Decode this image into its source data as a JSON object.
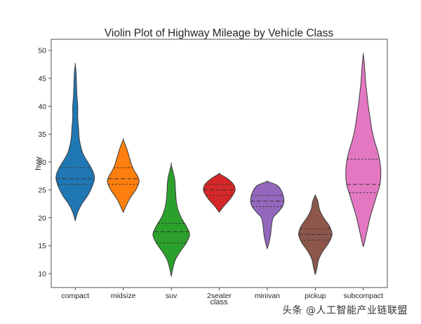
{
  "chart_data": {
    "type": "violin",
    "title": "Violin Plot of Highway Mileage by Vehicle Class",
    "xlabel": "class",
    "ylabel": "hwy",
    "ylim": [
      7.5,
      52
    ],
    "yticks": [
      10,
      15,
      20,
      25,
      30,
      35,
      40,
      45,
      50
    ],
    "grid": false,
    "categories": [
      "compact",
      "midsize",
      "suv",
      "2seater",
      "minivan",
      "pickup",
      "subcompact"
    ],
    "colors": [
      "#1f77b4",
      "#ff7f0e",
      "#2ca02c",
      "#d62728",
      "#9467bd",
      "#8c564b",
      "#e377c2"
    ],
    "violins": [
      {
        "class": "compact",
        "q1": 26,
        "median": 27,
        "q3": 29,
        "profile": [
          [
            19.5,
            0
          ],
          [
            21,
            3
          ],
          [
            22.5,
            8
          ],
          [
            24,
            15
          ],
          [
            25.5,
            20
          ],
          [
            27,
            23
          ],
          [
            28,
            22
          ],
          [
            29,
            19
          ],
          [
            30,
            15
          ],
          [
            31,
            11
          ],
          [
            32,
            8
          ],
          [
            34,
            5
          ],
          [
            36,
            4
          ],
          [
            38,
            3
          ],
          [
            40,
            3
          ],
          [
            42,
            2
          ],
          [
            44,
            1.5
          ],
          [
            46,
            1
          ],
          [
            47.5,
            0
          ]
        ]
      },
      {
        "class": "midsize",
        "q1": 26,
        "median": 27,
        "q3": 29,
        "profile": [
          [
            21,
            0
          ],
          [
            22,
            3
          ],
          [
            23.5,
            8
          ],
          [
            25,
            15
          ],
          [
            26.5,
            19
          ],
          [
            27.5,
            17
          ],
          [
            28.5,
            13
          ],
          [
            29.5,
            10
          ],
          [
            30.5,
            8
          ],
          [
            31.5,
            6
          ],
          [
            32.5,
            4
          ],
          [
            34,
            0
          ]
        ]
      },
      {
        "class": "suv",
        "q1": 15.5,
        "median": 17.5,
        "q3": 19,
        "profile": [
          [
            9.5,
            0
          ],
          [
            11,
            2
          ],
          [
            12.5,
            5
          ],
          [
            14,
            11
          ],
          [
            15.5,
            18
          ],
          [
            17,
            22
          ],
          [
            18.5,
            18
          ],
          [
            20,
            12
          ],
          [
            21.5,
            8
          ],
          [
            23,
            6
          ],
          [
            25,
            5
          ],
          [
            27,
            4
          ],
          [
            29.5,
            0
          ]
        ]
      },
      {
        "class": "2seater",
        "q1": 24,
        "median": 25,
        "q3": 26,
        "profile": [
          [
            21,
            0
          ],
          [
            22,
            5
          ],
          [
            23,
            11
          ],
          [
            24,
            16
          ],
          [
            25,
            19
          ],
          [
            26,
            17
          ],
          [
            27,
            10
          ],
          [
            27.9,
            0
          ]
        ]
      },
      {
        "class": "minivan",
        "q1": 22,
        "median": 23,
        "q3": 24,
        "profile": [
          [
            14.5,
            0
          ],
          [
            15.5,
            2
          ],
          [
            17,
            4
          ],
          [
            18.5,
            5
          ],
          [
            20,
            7
          ],
          [
            21,
            13
          ],
          [
            22,
            18
          ],
          [
            23,
            20
          ],
          [
            24.5,
            18
          ],
          [
            25.8,
            12
          ],
          [
            26.5,
            0
          ]
        ]
      },
      {
        "class": "pickup",
        "q1": 16,
        "median": 17,
        "q3": 18,
        "profile": [
          [
            9.8,
            0
          ],
          [
            11,
            2
          ],
          [
            12.5,
            4
          ],
          [
            14,
            9
          ],
          [
            15.5,
            16
          ],
          [
            17,
            20
          ],
          [
            18.5,
            17
          ],
          [
            20,
            10
          ],
          [
            21.5,
            5
          ],
          [
            23,
            3
          ],
          [
            24,
            0
          ]
        ]
      },
      {
        "class": "subcompact",
        "q1": 24.5,
        "median": 26,
        "q3": 30.5,
        "profile": [
          [
            14.8,
            0
          ],
          [
            16,
            2
          ],
          [
            18,
            5
          ],
          [
            20,
            8
          ],
          [
            22,
            12
          ],
          [
            24,
            16
          ],
          [
            26,
            20
          ],
          [
            28,
            21
          ],
          [
            30,
            20
          ],
          [
            32,
            17
          ],
          [
            34,
            13
          ],
          [
            36,
            10
          ],
          [
            38,
            8
          ],
          [
            40,
            6
          ],
          [
            42,
            4.5
          ],
          [
            44,
            3
          ],
          [
            46,
            2
          ],
          [
            48,
            1
          ],
          [
            49.3,
            0
          ]
        ]
      }
    ]
  },
  "footer": {
    "watermark": "头条 @人工智能产业链联盟"
  }
}
